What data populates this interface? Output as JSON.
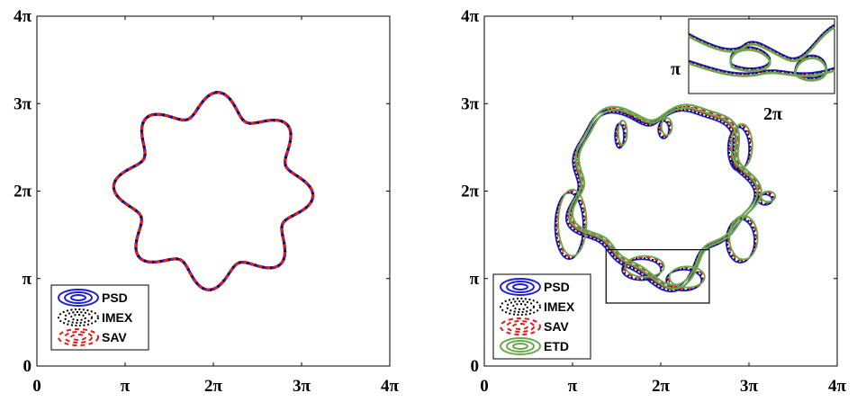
{
  "chart_data": [
    {
      "type": "line",
      "panel": "left",
      "xlim": [
        0,
        4
      ],
      "ylim": [
        0,
        4
      ],
      "axis_unit": "π",
      "x_ticks": [
        "0",
        "π",
        "2π",
        "3π",
        "4π"
      ],
      "y_ticks": [
        "0",
        "π",
        "2π",
        "3π",
        "4π"
      ],
      "grid": false,
      "legend_position": "bottom-left",
      "series": [
        {
          "name": "PSD",
          "color": "#1f1fd0",
          "style": "solid"
        },
        {
          "name": "IMEX",
          "color": "#000000",
          "style": "dotted"
        },
        {
          "name": "SAV",
          "color": "#e01b1b",
          "style": "dashed"
        }
      ],
      "contour": {
        "center": [
          2.0,
          2.0
        ],
        "radius": 1.0,
        "lobes": 8,
        "amplitude": 0.13
      }
    },
    {
      "type": "line",
      "panel": "right",
      "xlim": [
        0,
        4
      ],
      "ylim": [
        0,
        4
      ],
      "axis_unit": "π",
      "x_ticks": [
        "0",
        "π",
        "2π",
        "3π",
        "4π"
      ],
      "y_ticks": [
        "0",
        "π",
        "2π",
        "3π",
        "4π"
      ],
      "grid": false,
      "legend_position": "bottom-left",
      "series": [
        {
          "name": "PSD",
          "color": "#1f1fd0",
          "style": "solid"
        },
        {
          "name": "IMEX",
          "color": "#000000",
          "style": "dotted"
        },
        {
          "name": "SAV",
          "color": "#e01b1b",
          "style": "dashed"
        },
        {
          "name": "ETD",
          "color": "#6aa84f",
          "style": "solid"
        }
      ],
      "zoom_box": {
        "x": [
          1.38,
          2.55
        ],
        "y": [
          0.72,
          1.33
        ]
      },
      "inset": {
        "x_label": "2π",
        "y_label": "π"
      }
    }
  ]
}
